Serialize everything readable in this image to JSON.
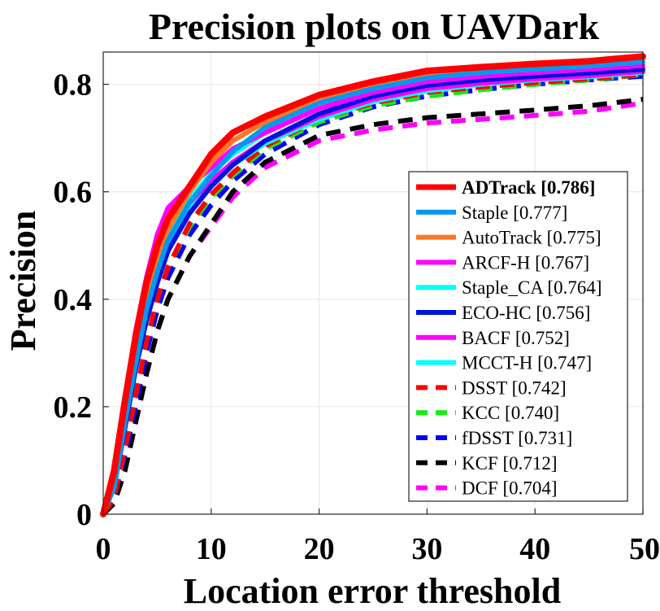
{
  "chart_data": {
    "type": "line",
    "title": "Precision plots on UAVDark",
    "xlabel": "Location error threshold",
    "ylabel": "Precision",
    "xlim": [
      0,
      50
    ],
    "ylim": [
      0,
      0.86
    ],
    "xticks": [
      0,
      10,
      20,
      30,
      40,
      50
    ],
    "xtick_labels": [
      "0",
      "10",
      "20",
      "30",
      "40",
      "50"
    ],
    "yticks": [
      0,
      0.2,
      0.4,
      0.6,
      0.8
    ],
    "ytick_labels": [
      "0",
      "0.2",
      "0.4",
      "0.6",
      "0.8"
    ],
    "grid": true,
    "legend_position": "bottom-right",
    "x": [
      0,
      1,
      2,
      3,
      4,
      5,
      6,
      8,
      10,
      12,
      15,
      20,
      25,
      30,
      35,
      40,
      45,
      50
    ],
    "series": [
      {
        "name": "ADTrack [0.786]",
        "color": "#ff0000",
        "dashed": false,
        "bold": true,
        "values": [
          0.0,
          0.08,
          0.21,
          0.33,
          0.43,
          0.5,
          0.55,
          0.61,
          0.67,
          0.71,
          0.74,
          0.78,
          0.805,
          0.825,
          0.832,
          0.838,
          0.843,
          0.852
        ]
      },
      {
        "name": "Staple [0.777]",
        "color": "#0099ee",
        "dashed": false,
        "bold": false,
        "values": [
          0.0,
          0.05,
          0.17,
          0.28,
          0.38,
          0.45,
          0.51,
          0.58,
          0.63,
          0.675,
          0.72,
          0.765,
          0.792,
          0.812,
          0.822,
          0.828,
          0.834,
          0.842
        ]
      },
      {
        "name": "AutoTrack [0.775]",
        "color": "#ff7722",
        "dashed": false,
        "bold": false,
        "values": [
          0.0,
          0.06,
          0.19,
          0.31,
          0.41,
          0.48,
          0.53,
          0.6,
          0.655,
          0.695,
          0.73,
          0.77,
          0.798,
          0.816,
          0.826,
          0.834,
          0.84,
          0.848
        ]
      },
      {
        "name": "ARCF-H [0.767]",
        "color": "#ff00ff",
        "dashed": false,
        "bold": false,
        "values": [
          0.0,
          0.07,
          0.21,
          0.34,
          0.44,
          0.52,
          0.57,
          0.61,
          0.645,
          0.68,
          0.71,
          0.755,
          0.785,
          0.805,
          0.815,
          0.822,
          0.828,
          0.835
        ]
      },
      {
        "name": "Staple_CA [0.764]",
        "color": "#00ffff",
        "dashed": false,
        "bold": false,
        "values": [
          0.0,
          0.05,
          0.17,
          0.29,
          0.39,
          0.46,
          0.52,
          0.585,
          0.635,
          0.67,
          0.71,
          0.755,
          0.785,
          0.805,
          0.815,
          0.822,
          0.828,
          0.836
        ]
      },
      {
        "name": "ECO-HC [0.756]",
        "color": "#0011dd",
        "dashed": false,
        "bold": false,
        "values": [
          0.0,
          0.05,
          0.16,
          0.27,
          0.36,
          0.43,
          0.49,
          0.56,
          0.61,
          0.65,
          0.695,
          0.745,
          0.778,
          0.798,
          0.808,
          0.815,
          0.821,
          0.828
        ]
      },
      {
        "name": "BACF [0.752]",
        "color": "#ff00ff",
        "dashed": false,
        "bold": false,
        "values": [
          0.0,
          0.06,
          0.19,
          0.31,
          0.41,
          0.48,
          0.53,
          0.58,
          0.62,
          0.655,
          0.695,
          0.74,
          0.772,
          0.792,
          0.802,
          0.81,
          0.816,
          0.824
        ]
      },
      {
        "name": "MCCT-H [0.747]",
        "color": "#00ffff",
        "dashed": false,
        "bold": false,
        "values": [
          0.0,
          0.05,
          0.16,
          0.27,
          0.37,
          0.44,
          0.5,
          0.565,
          0.615,
          0.65,
          0.69,
          0.735,
          0.768,
          0.788,
          0.8,
          0.808,
          0.814,
          0.822
        ]
      },
      {
        "name": "DSST [0.742]",
        "color": "#ff0000",
        "dashed": true,
        "bold": false,
        "values": [
          0.0,
          0.03,
          0.12,
          0.22,
          0.32,
          0.4,
          0.46,
          0.54,
          0.595,
          0.635,
          0.685,
          0.735,
          0.765,
          0.785,
          0.795,
          0.803,
          0.81,
          0.818
        ]
      },
      {
        "name": "KCC [0.740]",
        "color": "#11ee11",
        "dashed": true,
        "bold": false,
        "values": [
          0.0,
          0.03,
          0.12,
          0.22,
          0.32,
          0.4,
          0.46,
          0.535,
          0.59,
          0.63,
          0.68,
          0.73,
          0.76,
          0.778,
          0.79,
          0.8,
          0.808,
          0.818
        ]
      },
      {
        "name": "fDSST [0.731]",
        "color": "#0000ff",
        "dashed": true,
        "bold": false,
        "values": [
          0.0,
          0.03,
          0.11,
          0.2,
          0.3,
          0.38,
          0.44,
          0.52,
          0.575,
          0.62,
          0.67,
          0.725,
          0.758,
          0.778,
          0.79,
          0.8,
          0.808,
          0.815
        ]
      },
      {
        "name": "KCF [0.712]",
        "color": "#000000",
        "dashed": true,
        "bold": false,
        "values": [
          0.0,
          0.02,
          0.08,
          0.17,
          0.26,
          0.34,
          0.4,
          0.48,
          0.54,
          0.6,
          0.655,
          0.705,
          0.725,
          0.738,
          0.745,
          0.752,
          0.76,
          0.772
        ]
      },
      {
        "name": "DCF [0.704]",
        "color": "#ff00ff",
        "dashed": true,
        "bold": false,
        "values": [
          0.0,
          0.02,
          0.08,
          0.17,
          0.26,
          0.34,
          0.4,
          0.48,
          0.535,
          0.59,
          0.645,
          0.695,
          0.715,
          0.728,
          0.735,
          0.742,
          0.75,
          0.765
        ]
      }
    ]
  }
}
